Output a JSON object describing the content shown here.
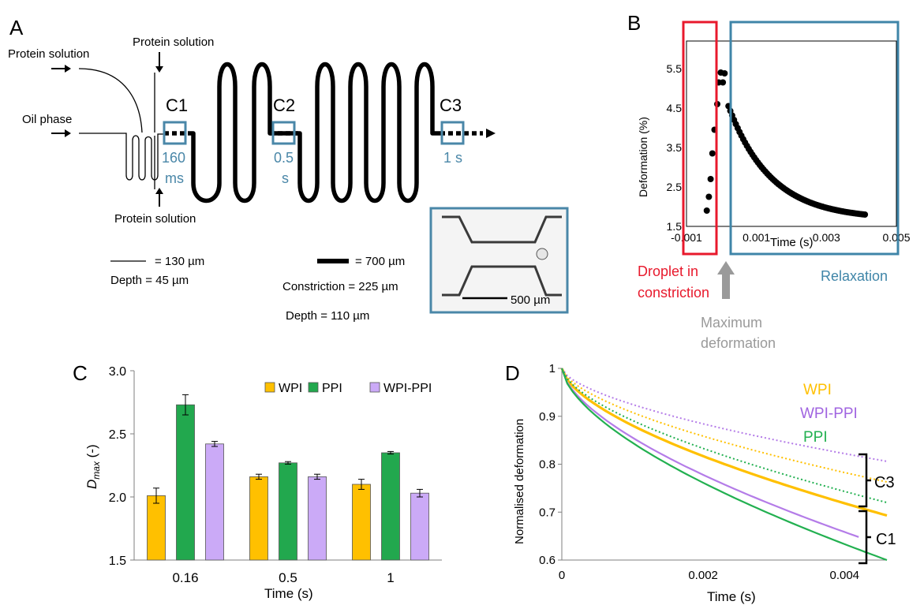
{
  "panel_a": {
    "label": "A",
    "protein_solution_left": "Protein solution",
    "protein_solution_top": "Protein solution",
    "protein_solution_bottom": "Protein solution",
    "oil_phase": "Oil phase",
    "c1": "C1",
    "c2": "C2",
    "c3": "C3",
    "c1_time": [
      "160",
      "ms"
    ],
    "c2_time": [
      "0.5",
      "s"
    ],
    "c3_time": "1 s",
    "thin_line_width": "= 130 µm",
    "thin_depth": "Depth = 45 µm",
    "thick_line_width": "= 700 µm",
    "constriction": "Constriction = 225 µm",
    "thick_depth": "Depth = 110 µm",
    "scalebar": "500 µm",
    "colors": {
      "accent": "#4a87a8"
    }
  },
  "panel_b": {
    "label": "B",
    "droplet_label": [
      "Droplet in",
      "constriction"
    ],
    "relaxation_label": "Relaxation",
    "maximum_label": [
      "Maximum",
      "deformation"
    ],
    "colors": {
      "red": "#e8192c",
      "blue": "#3f85a8",
      "grey": "#9a9a9a"
    }
  },
  "panel_c": {
    "label": "C"
  },
  "panel_d": {
    "label": "D",
    "c3_bracket": "C3",
    "c1_bracket": "C1"
  },
  "chart_data": [
    {
      "id": "B",
      "type": "scatter",
      "xlabel": "Time (s)",
      "ylabel": "Deformation (%)",
      "xlim": [
        -0.001,
        0.005
      ],
      "ylim": [
        1.5,
        6.2
      ],
      "xticks": [
        "-0.001",
        "0.001",
        "0.003",
        "0.005"
      ],
      "yticks": [
        "1.5",
        "2.5",
        "3.5",
        "4.5",
        "5.5"
      ],
      "rising": [
        [
          -0.00042,
          1.9
        ],
        [
          -0.00036,
          2.25
        ],
        [
          -0.00031,
          2.7
        ],
        [
          -0.00026,
          3.35
        ],
        [
          -0.0002,
          3.95
        ],
        [
          -0.00012,
          4.6
        ],
        [
          -8e-05,
          5.15
        ],
        [
          -2e-05,
          5.4
        ],
        [
          4e-05,
          5.15
        ],
        [
          9e-05,
          5.38
        ]
      ],
      "decay": {
        "x_start": 0.0002,
        "x_end": 0.0041,
        "y_start": 4.55,
        "y_end": 1.8,
        "points": 75
      },
      "grid": false
    },
    {
      "id": "C",
      "type": "bar",
      "categories": [
        "0.16",
        "0.5",
        "1"
      ],
      "series": [
        {
          "name": "WPI",
          "values": [
            2.01,
            2.16,
            2.1
          ],
          "errors": [
            0.06,
            0.02,
            0.04
          ],
          "color": "#ffc000"
        },
        {
          "name": "PPI",
          "values": [
            2.73,
            2.27,
            2.35
          ],
          "errors": [
            0.08,
            0.01,
            0.01
          ],
          "color": "#22a84e"
        },
        {
          "name": "WPI-PPI",
          "values": [
            2.42,
            2.16,
            2.03
          ],
          "errors": [
            0.02,
            0.02,
            0.03
          ],
          "color": "#cbaaf7"
        }
      ],
      "xlabel": "Time (s)",
      "ylabel": "D",
      "ylabel_sub": "max",
      "ylabel_suffix": " (-)",
      "ylim": [
        1.5,
        3.0
      ],
      "yticks": [
        "1.5",
        "2.0",
        "2.5",
        "3.0"
      ],
      "legend": "top-right"
    },
    {
      "id": "D",
      "type": "line",
      "xlabel": "Time (s)",
      "ylabel": "Normalised deformation",
      "xlim": [
        0,
        0.0046
      ],
      "ylim": [
        0.6,
        1.0
      ],
      "xticks": [
        "0",
        "0.002",
        "0.004"
      ],
      "yticks": [
        "0.6",
        "0.7",
        "0.8",
        "0.9",
        "1"
      ],
      "legend": [
        "WPI",
        "WPI-PPI",
        "PPI"
      ],
      "legend_colors": [
        "#ffc000",
        "#a064e0",
        "#22b050"
      ],
      "series": [
        {
          "name": "WPI",
          "group": "C1",
          "style": "solid",
          "color": "#ffc000",
          "xmax": 0.0046,
          "end": 0.693
        },
        {
          "name": "WPI-PPI",
          "group": "C1",
          "style": "solid",
          "color": "#b47ce8",
          "xmax": 0.0042,
          "end": 0.648
        },
        {
          "name": "PPI",
          "group": "C1",
          "style": "solid",
          "color": "#22b050",
          "xmax": 0.0046,
          "end": 0.6
        },
        {
          "name": "WPI",
          "group": "C3",
          "style": "dotted",
          "color": "#ffc000",
          "xmax": 0.0046,
          "end": 0.763
        },
        {
          "name": "WPI-PPI",
          "group": "C3",
          "style": "dotted",
          "color": "#b47ce8",
          "xmax": 0.0046,
          "end": 0.806
        },
        {
          "name": "PPI",
          "group": "C3",
          "style": "dotted",
          "color": "#22b050",
          "xmax": 0.0046,
          "end": 0.72
        }
      ]
    }
  ]
}
